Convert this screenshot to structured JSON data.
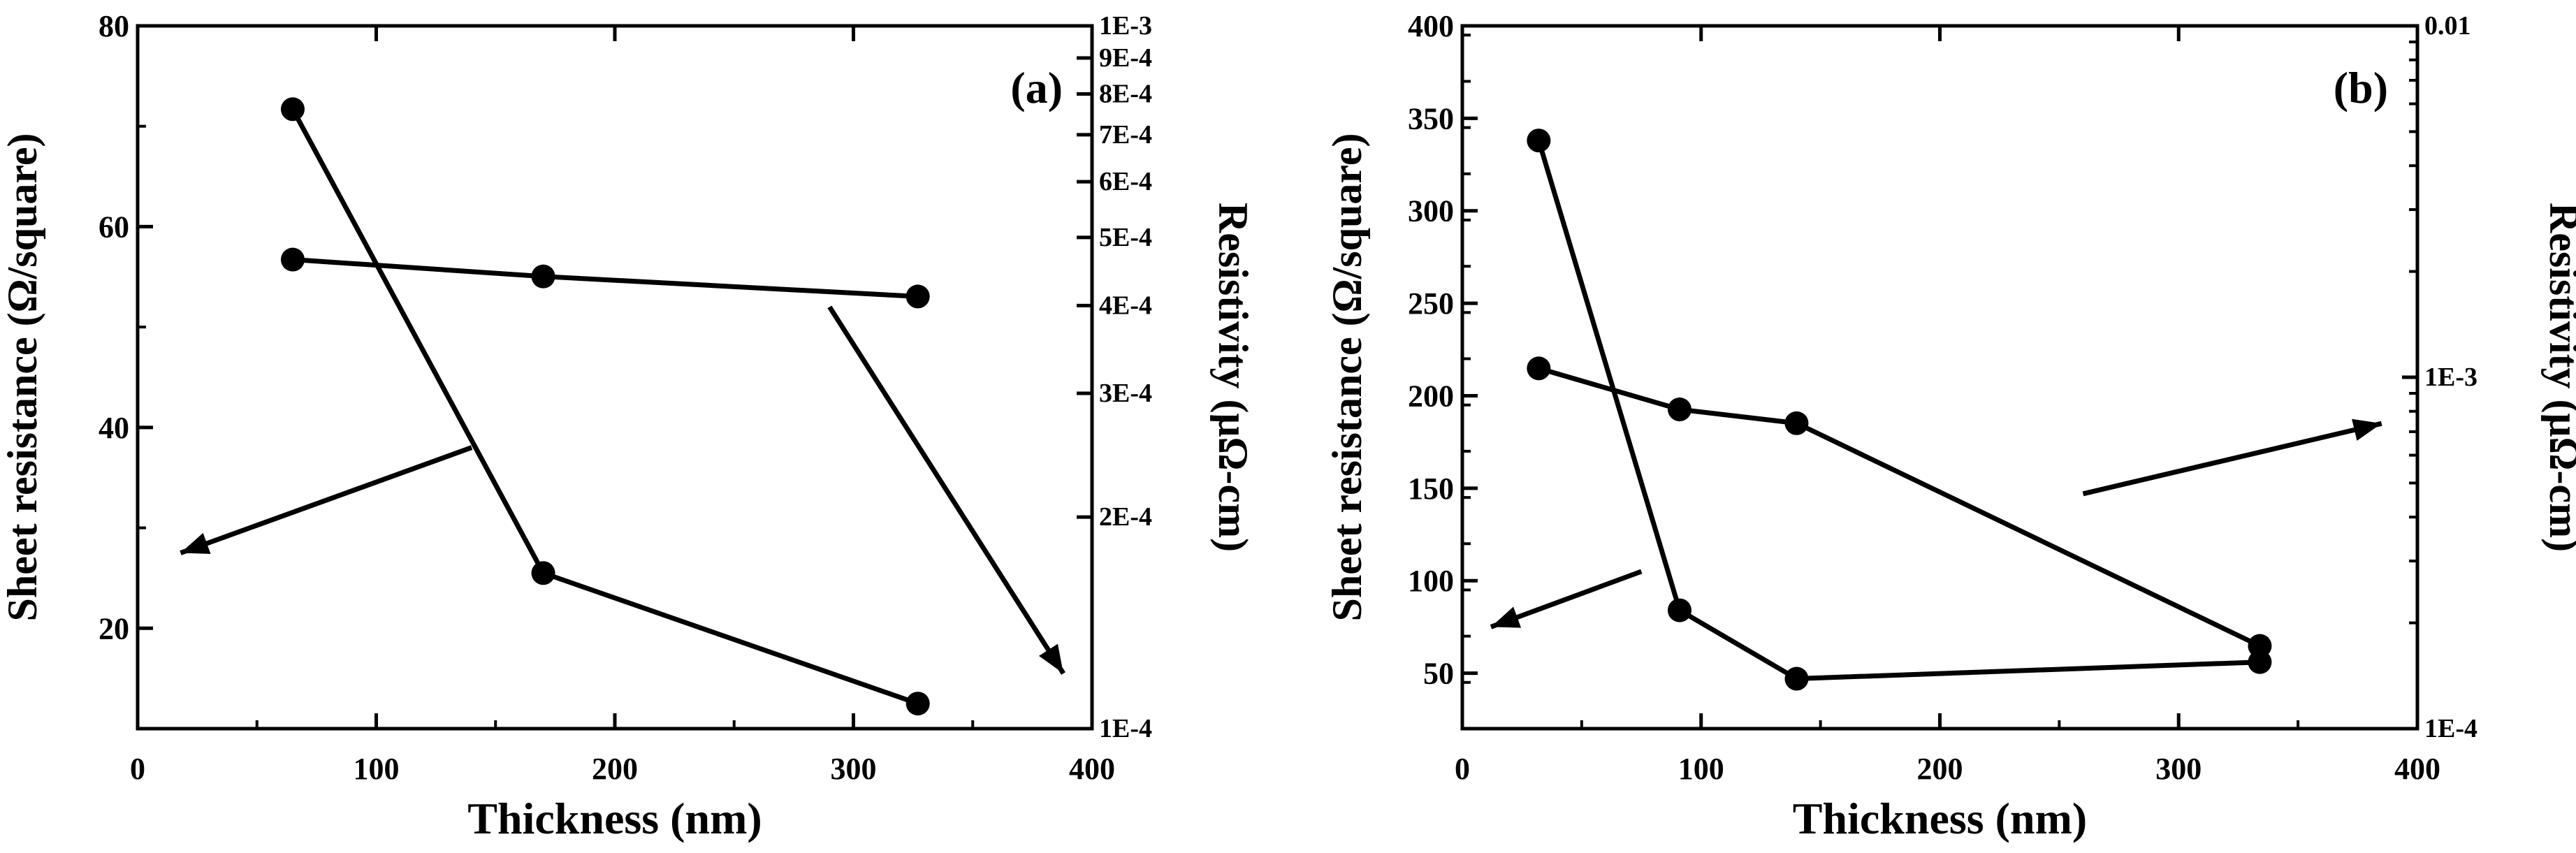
{
  "chart_data": [
    {
      "type": "line",
      "panel_label": "(a)",
      "xlabel": "Thickness (nm)",
      "ylabel": "Sheet resistance (Ω/square)",
      "y2label": "Resistivity (μΩ-cm)",
      "xlim": [
        0,
        400
      ],
      "ylim": [
        10,
        80
      ],
      "y2lim": [
        0.0001,
        0.001
      ],
      "y2scale": "log",
      "xticks": [
        0,
        100,
        200,
        300,
        400
      ],
      "yticks": [
        20,
        40,
        60,
        80
      ],
      "y2ticks": [
        {
          "value": 0.0001,
          "label": "1E-4"
        },
        {
          "value": 0.0002,
          "label": "2E-4"
        },
        {
          "value": 0.0003,
          "label": "3E-4"
        },
        {
          "value": 0.0004,
          "label": "4E-4"
        },
        {
          "value": 0.0005,
          "label": "5E-4"
        },
        {
          "value": 0.0006,
          "label": "6E-4"
        },
        {
          "value": 0.0007,
          "label": "7E-4"
        },
        {
          "value": 0.0008,
          "label": "8E-4"
        },
        {
          "value": 0.0009,
          "label": "9E-4"
        },
        {
          "value": 0.001,
          "label": "1E-3"
        }
      ],
      "series": [
        {
          "name": "Sheet resistance",
          "axis": "left",
          "x": [
            65,
            170,
            327
          ],
          "values": [
            71.7,
            25.5,
            12.5
          ]
        },
        {
          "name": "Resistivity",
          "axis": "right",
          "x": [
            65,
            170,
            327
          ],
          "values": [
            0.000465,
            0.00044,
            0.000412
          ]
        }
      ],
      "annotations": [
        {
          "type": "arrow",
          "points_to": "left axis",
          "from": [
            140,
            38
          ],
          "to": [
            18,
            27.5
          ]
        },
        {
          "type": "arrow",
          "points_to": "right axis",
          "from": [
            290,
            52
          ],
          "to": [
            388,
            15.5
          ]
        }
      ]
    },
    {
      "type": "line",
      "panel_label": "(b)",
      "xlabel": "Thickness (nm)",
      "ylabel": "Sheet resistance (Ω/square)",
      "y2label": "Resistivity (μΩ-cm)",
      "xlim": [
        0,
        400
      ],
      "ylim": [
        20,
        400
      ],
      "y2lim": [
        0.0001,
        0.01
      ],
      "y2scale": "log",
      "xticks": [
        0,
        100,
        200,
        300,
        400
      ],
      "yticks": [
        50,
        100,
        150,
        200,
        250,
        300,
        350,
        400
      ],
      "y2ticks": [
        {
          "value": 0.0001,
          "label": "1E-4"
        },
        {
          "value": 0.001,
          "label": "1E-3"
        },
        {
          "value": 0.01,
          "label": "0.01"
        }
      ],
      "series": [
        {
          "name": "Sheet resistance",
          "axis": "left",
          "x": [
            32,
            91,
            140,
            334
          ],
          "values": [
            338,
            84,
            47,
            56
          ]
        },
        {
          "name": "Resistivity",
          "axis": "right",
          "x": [
            32,
            91,
            140,
            334
          ],
          "values": [
            0.00106,
            0.00081,
            0.00074,
            0.000172
          ]
        }
      ],
      "annotations": [
        {
          "type": "arrow",
          "points_to": "left axis",
          "from": [
            75,
            105
          ],
          "to": [
            12,
            75
          ]
        },
        {
          "type": "arrow",
          "points_to": "right axis",
          "from": [
            260,
            147
          ],
          "to": [
            385,
            185
          ]
        }
      ]
    }
  ]
}
